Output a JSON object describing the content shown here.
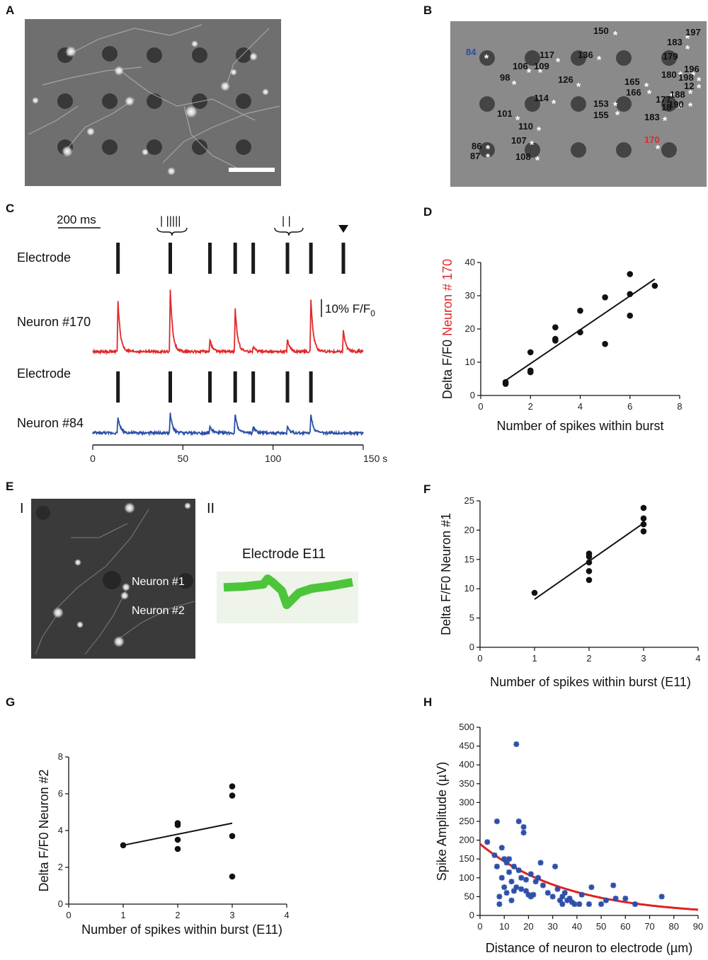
{
  "panels": {
    "A": "A",
    "B": "B",
    "C": "C",
    "D": "D",
    "E": "E",
    "F": "F",
    "G": "G",
    "H": "H"
  },
  "colors": {
    "red": "#e0282a",
    "blue": "#2b4ea8",
    "green": "#4cc53a",
    "hblue": "#2e4fa8",
    "hred": "#e02020"
  },
  "panel_b": {
    "highlight_blue": "84",
    "highlight_red": "170",
    "neuron_ids": [
      "150",
      "197",
      "183",
      "179",
      "117",
      "136",
      "106",
      "109",
      "98",
      "126",
      "180",
      "198",
      "196",
      "12",
      "165",
      "166",
      "114",
      "153",
      "155",
      "177",
      "188",
      "190",
      "18",
      "101",
      "183",
      "110",
      "107",
      "86",
      "87",
      "108"
    ]
  },
  "panel_c": {
    "scale_bar_label": "200 ms",
    "row_electrode_1": "Electrode",
    "row_neuron_170": "Neuron #170",
    "row_electrode_2": "Electrode",
    "row_neuron_84": "Neuron #84",
    "scale_label": "10% F/F",
    "scale_sub": "0",
    "burst_left_ticks": "| |||||",
    "burst_right_ticks": "| |",
    "x_unit": "s",
    "xticks": [
      "0",
      "50",
      "100",
      "150 s"
    ]
  },
  "panel_e": {
    "sub_I": "I",
    "sub_II": "II",
    "neuron1": "Neuron #1",
    "neuron2": "Neuron #2",
    "electrode_title": "Electrode E11"
  },
  "chart_data": [
    {
      "id": "C",
      "type": "line",
      "title": "",
      "xlabel": "",
      "xlim": [
        0,
        150
      ],
      "xtick_values": [
        0,
        50,
        100,
        150
      ],
      "electrode_events_s": [
        14,
        43,
        65,
        79,
        89,
        108,
        121,
        139
      ],
      "series": [
        {
          "name": "Neuron #170",
          "color": "#e0282a",
          "peak_times_s": [
            14,
            43,
            65,
            79,
            89,
            108,
            121,
            139
          ],
          "peak_heights_pct_F_F0": [
            33,
            40,
            8,
            28,
            3,
            8,
            34,
            14
          ]
        },
        {
          "name": "Neuron #84",
          "color": "#2b4ea8",
          "peak_times_s": [
            14,
            43,
            65,
            79,
            89,
            108,
            121
          ],
          "peak_heights_pct_F_F0": [
            10,
            12,
            4,
            12,
            4,
            4,
            12
          ]
        }
      ]
    },
    {
      "id": "D",
      "type": "scatter",
      "xlabel": "Number of spikes within burst",
      "ylabel_prefix": "Delta F/F0 ",
      "ylabel_suffix": "Neuron # 170",
      "xlim": [
        0,
        8
      ],
      "ylim": [
        0,
        40
      ],
      "xticks": [
        "0",
        "2",
        "4",
        "6",
        "8"
      ],
      "yticks": [
        "0",
        "10",
        "20",
        "30",
        "40"
      ],
      "points": [
        [
          1,
          3.5
        ],
        [
          1,
          4
        ],
        [
          2,
          13
        ],
        [
          2,
          7.5
        ],
        [
          2,
          7
        ],
        [
          3,
          20.5
        ],
        [
          3,
          17
        ],
        [
          3,
          16.5
        ],
        [
          4,
          25.5
        ],
        [
          4,
          19
        ],
        [
          5,
          29.5
        ],
        [
          5,
          15.5
        ],
        [
          6,
          36.5
        ],
        [
          6,
          30.5
        ],
        [
          6,
          24
        ],
        [
          7,
          33
        ]
      ],
      "fit": [
        [
          1,
          4.5
        ],
        [
          7,
          35
        ]
      ]
    },
    {
      "id": "F",
      "type": "scatter",
      "xlabel": "Number of spikes within burst (E11)",
      "ylabel": "Delta F/F0 Neuron #1",
      "xlim": [
        0,
        4
      ],
      "ylim": [
        0,
        25
      ],
      "xticks": [
        "0",
        "1",
        "2",
        "3",
        "4"
      ],
      "yticks": [
        "0",
        "5",
        "10",
        "15",
        "20",
        "25"
      ],
      "points": [
        [
          1,
          9.3
        ],
        [
          2,
          16
        ],
        [
          2,
          15.5
        ],
        [
          2,
          14.5
        ],
        [
          2,
          13
        ],
        [
          2,
          11.5
        ],
        [
          3,
          23.8
        ],
        [
          3,
          22
        ],
        [
          3,
          21
        ],
        [
          3,
          19.8
        ]
      ],
      "fit": [
        [
          1,
          8.2
        ],
        [
          3,
          21.2
        ]
      ]
    },
    {
      "id": "G",
      "type": "scatter",
      "xlabel": "Number of spikes within burst (E11)",
      "ylabel": "Delta F/F0 Neuron #2",
      "xlim": [
        0,
        4
      ],
      "ylim": [
        0,
        8
      ],
      "xticks": [
        "0",
        "1",
        "2",
        "3",
        "4"
      ],
      "yticks": [
        "0",
        "2",
        "4",
        "6",
        "8"
      ],
      "points": [
        [
          1,
          3.2
        ],
        [
          2,
          4.4
        ],
        [
          2,
          4.3
        ],
        [
          2,
          3.5
        ],
        [
          2,
          3.0
        ],
        [
          3,
          6.4
        ],
        [
          3,
          5.9
        ],
        [
          3,
          3.7
        ],
        [
          3,
          1.5
        ]
      ],
      "fit": [
        [
          1,
          3.2
        ],
        [
          3,
          4.4
        ]
      ]
    },
    {
      "id": "H",
      "type": "scatter",
      "xlabel": "Distance of neuron to electrode (µm)",
      "ylabel": "Spike Amplitude (µV)",
      "xlim": [
        0,
        90
      ],
      "ylim": [
        0,
        500
      ],
      "xticks": [
        "0",
        "10",
        "20",
        "30",
        "40",
        "50",
        "60",
        "70",
        "80",
        "90"
      ],
      "yticks": [
        "0",
        "50",
        "100",
        "150",
        "200",
        "250",
        "300",
        "350",
        "400",
        "450",
        "500"
      ],
      "points": [
        [
          3,
          195
        ],
        [
          6,
          160
        ],
        [
          7,
          250
        ],
        [
          7,
          130
        ],
        [
          8,
          50
        ],
        [
          8,
          30
        ],
        [
          9,
          180
        ],
        [
          9,
          100
        ],
        [
          10,
          150
        ],
        [
          10,
          75
        ],
        [
          11,
          140
        ],
        [
          11,
          60
        ],
        [
          12,
          150
        ],
        [
          12,
          115
        ],
        [
          13,
          40
        ],
        [
          13,
          90
        ],
        [
          14,
          130
        ],
        [
          14,
          65
        ],
        [
          15,
          75
        ],
        [
          15,
          455
        ],
        [
          16,
          250
        ],
        [
          16,
          120
        ],
        [
          17,
          100
        ],
        [
          17,
          70
        ],
        [
          18,
          220
        ],
        [
          18,
          235
        ],
        [
          19,
          65
        ],
        [
          19,
          95
        ],
        [
          20,
          55
        ],
        [
          21,
          110
        ],
        [
          21,
          50
        ],
        [
          22,
          55
        ],
        [
          23,
          90
        ],
        [
          24,
          100
        ],
        [
          25,
          140
        ],
        [
          26,
          80
        ],
        [
          28,
          60
        ],
        [
          30,
          50
        ],
        [
          31,
          130
        ],
        [
          32,
          70
        ],
        [
          33,
          40
        ],
        [
          34,
          30
        ],
        [
          34,
          50
        ],
        [
          35,
          60
        ],
        [
          36,
          40
        ],
        [
          37,
          45
        ],
        [
          38,
          35
        ],
        [
          39,
          30
        ],
        [
          41,
          30
        ],
        [
          42,
          55
        ],
        [
          45,
          30
        ],
        [
          46,
          75
        ],
        [
          50,
          30
        ],
        [
          52,
          40
        ],
        [
          55,
          80
        ],
        [
          56,
          45
        ],
        [
          60,
          45
        ],
        [
          64,
          30
        ],
        [
          75,
          50
        ]
      ],
      "fit_exponential": {
        "a": 190,
        "b": 0.028
      }
    }
  ]
}
